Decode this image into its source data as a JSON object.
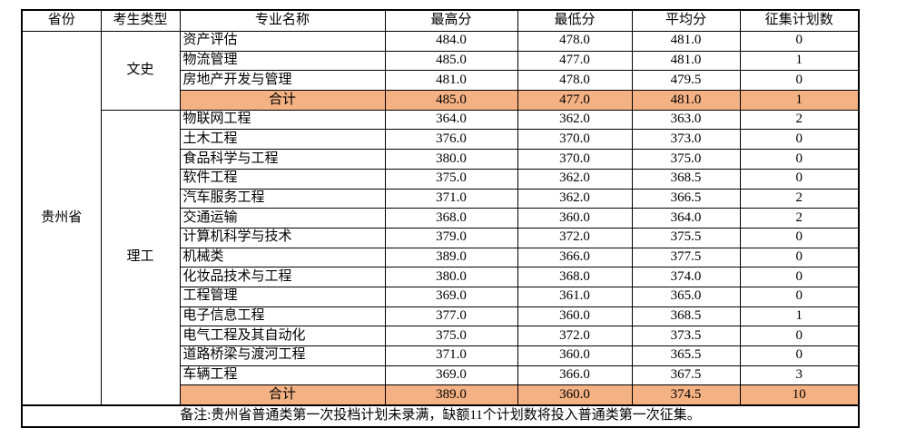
{
  "table": {
    "highlight_color": "#F4B183",
    "border_color": "#000000",
    "headers": [
      "省份",
      "考生类型",
      "专业名称",
      "最高分",
      "最低分",
      "平均分",
      "征集计划数"
    ],
    "province": "贵州省",
    "groups": [
      {
        "type": "文史",
        "rows": [
          {
            "major": "资产评估",
            "max": "484.0",
            "min": "478.0",
            "avg": "481.0",
            "plan": "0"
          },
          {
            "major": "物流管理",
            "max": "485.0",
            "min": "477.0",
            "avg": "481.0",
            "plan": "1"
          },
          {
            "major": "房地产开发与管理",
            "max": "481.0",
            "min": "478.0",
            "avg": "479.5",
            "plan": "0"
          }
        ],
        "total": {
          "label": "合计",
          "max": "485.0",
          "min": "477.0",
          "avg": "481.0",
          "plan": "1"
        }
      },
      {
        "type": "理工",
        "rows": [
          {
            "major": "物联网工程",
            "max": "364.0",
            "min": "362.0",
            "avg": "363.0",
            "plan": "2"
          },
          {
            "major": "土木工程",
            "max": "376.0",
            "min": "370.0",
            "avg": "373.0",
            "plan": "0"
          },
          {
            "major": "食品科学与工程",
            "max": "380.0",
            "min": "370.0",
            "avg": "375.0",
            "plan": "0"
          },
          {
            "major": "软件工程",
            "max": "375.0",
            "min": "362.0",
            "avg": "368.5",
            "plan": "0"
          },
          {
            "major": "汽车服务工程",
            "max": "371.0",
            "min": "362.0",
            "avg": "366.5",
            "plan": "2"
          },
          {
            "major": "交通运输",
            "max": "368.0",
            "min": "360.0",
            "avg": "364.0",
            "plan": "2"
          },
          {
            "major": "计算机科学与技术",
            "max": "379.0",
            "min": "372.0",
            "avg": "375.5",
            "plan": "0"
          },
          {
            "major": "机械类",
            "max": "389.0",
            "min": "366.0",
            "avg": "377.5",
            "plan": "0"
          },
          {
            "major": "化妆品技术与工程",
            "max": "380.0",
            "min": "368.0",
            "avg": "374.0",
            "plan": "0"
          },
          {
            "major": "工程管理",
            "max": "369.0",
            "min": "361.0",
            "avg": "365.0",
            "plan": "0"
          },
          {
            "major": "电子信息工程",
            "max": "377.0",
            "min": "360.0",
            "avg": "368.5",
            "plan": "1"
          },
          {
            "major": "电气工程及其自动化",
            "max": "375.0",
            "min": "372.0",
            "avg": "373.5",
            "plan": "0"
          },
          {
            "major": "道路桥梁与渡河工程",
            "max": "371.0",
            "min": "360.0",
            "avg": "365.5",
            "plan": "0"
          },
          {
            "major": "车辆工程",
            "max": "369.0",
            "min": "366.0",
            "avg": "367.5",
            "plan": "3"
          }
        ],
        "total": {
          "label": "合计",
          "max": "389.0",
          "min": "360.0",
          "avg": "374.5",
          "plan": "10"
        }
      }
    ],
    "note": "备注:贵州省普通类第一次投档计划未录满，缺额11个计划数将投入普通类第一次征集。"
  }
}
